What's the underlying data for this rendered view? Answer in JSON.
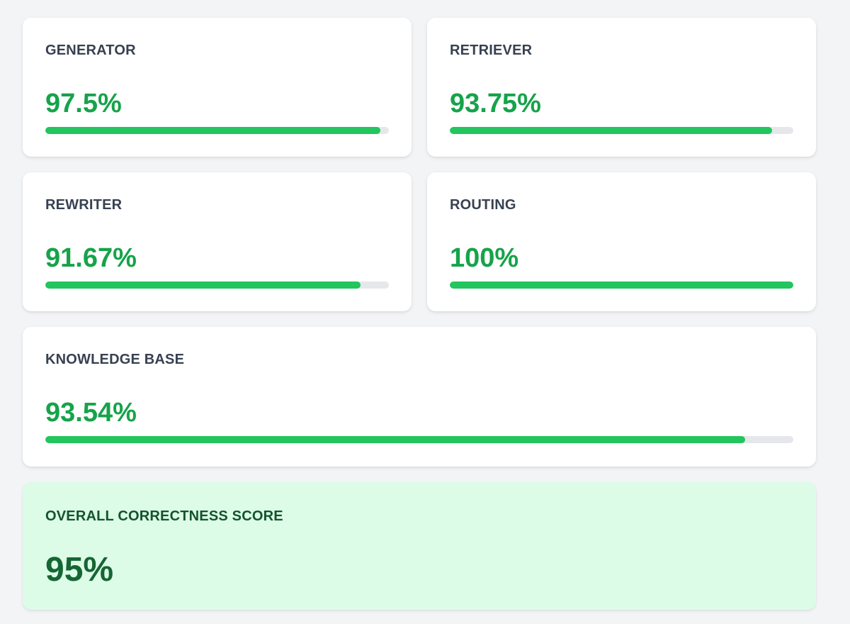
{
  "metrics": [
    {
      "label": "GENERATOR",
      "value_text": "97.5%",
      "progress": 97.5
    },
    {
      "label": "RETRIEVER",
      "value_text": "93.75%",
      "progress": 93.75
    },
    {
      "label": "REWRITER",
      "value_text": "91.67%",
      "progress": 91.67
    },
    {
      "label": "ROUTING",
      "value_text": "100%",
      "progress": 100
    },
    {
      "label": "KNOWLEDGE BASE",
      "value_text": "93.54%",
      "progress": 93.54
    }
  ],
  "overall": {
    "label": "OVERALL CORRECTNESS SCORE",
    "value_text": "95%"
  },
  "colors": {
    "accent": "#16a34a",
    "bar_fill": "#22c55e",
    "bar_track": "#e5e7eb",
    "overall_bg": "#dcfce7",
    "overall_text": "#166534"
  }
}
